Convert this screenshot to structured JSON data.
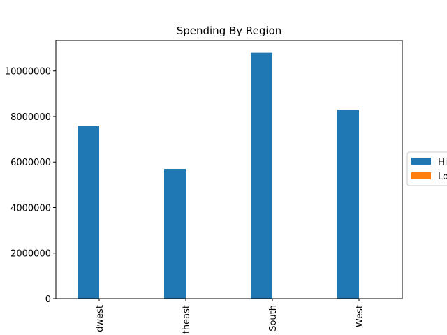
{
  "chart_data": {
    "type": "bar",
    "title": "Spending By Region",
    "categories": [
      "Midwest",
      "Northeast",
      "South",
      "West"
    ],
    "category_labels_visible": [
      "dwest",
      "theast",
      "South",
      "West"
    ],
    "series": [
      {
        "name": "Hi",
        "color": "#1f77b4",
        "values": [
          7600000,
          5700000,
          10800000,
          8300000
        ]
      },
      {
        "name": "Lo",
        "color": "#ff7f0e",
        "values": [
          0,
          0,
          0,
          0
        ]
      }
    ],
    "y_ticks": [
      0,
      2000000,
      4000000,
      6000000,
      8000000,
      10000000
    ],
    "y_tick_labels": [
      "0",
      "2000000",
      "4000000",
      "6000000",
      "8000000",
      "10000000"
    ],
    "ylim": [
      0,
      11340000
    ],
    "xlabel": "",
    "ylabel": "",
    "grid": false,
    "legend_position": "right (clipped)"
  }
}
